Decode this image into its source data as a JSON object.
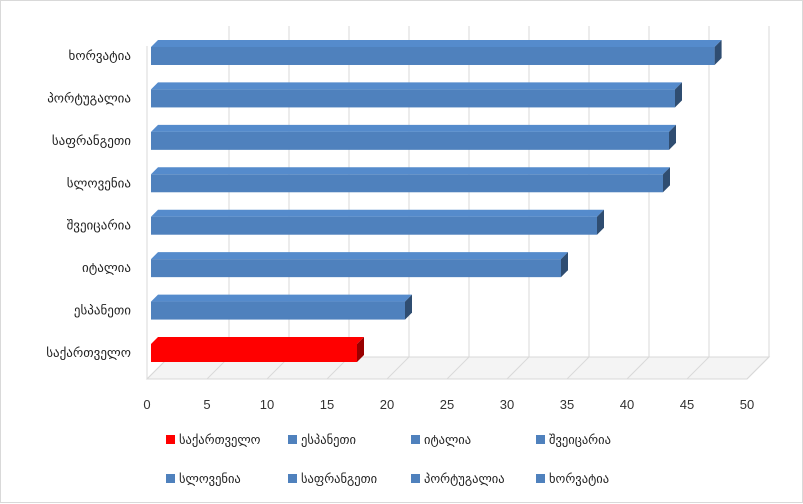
{
  "chart_data": {
    "type": "bar",
    "orientation": "horizontal",
    "three_d": true,
    "categories": [
      "საქართველო",
      "ესპანეთი",
      "იტალია",
      "შვეიცარია",
      "სლოვენია",
      "საფრანგეთი",
      "პორტუგალია",
      "ხორვატია"
    ],
    "values": [
      17.5,
      21.5,
      34.5,
      37.5,
      43,
      43.5,
      44,
      47.3
    ],
    "colors": [
      "#ff0000",
      "#4f81bd",
      "#4f81bd",
      "#4f81bd",
      "#4f81bd",
      "#4f81bd",
      "#4f81bd",
      "#4f81bd"
    ],
    "x_ticks": [
      "0",
      "5",
      "10",
      "15",
      "20",
      "25",
      "30",
      "35",
      "40",
      "45",
      "50"
    ],
    "xlim": [
      0,
      50
    ],
    "grid": "vertical",
    "legend": {
      "position": "bottom",
      "entries": [
        "საქართველო",
        "ესპანეთი",
        "იტალია",
        "შვეიცარია",
        "სლოვენია",
        "საფრანგეთი",
        "პორტუგალია",
        "ხორვატია"
      ],
      "colors": [
        "#ff0000",
        "#4f81bd",
        "#4f81bd",
        "#4f81bd",
        "#4f81bd",
        "#4f81bd",
        "#4f81bd",
        "#4f81bd"
      ]
    },
    "title": "",
    "xlabel": "",
    "ylabel": ""
  }
}
